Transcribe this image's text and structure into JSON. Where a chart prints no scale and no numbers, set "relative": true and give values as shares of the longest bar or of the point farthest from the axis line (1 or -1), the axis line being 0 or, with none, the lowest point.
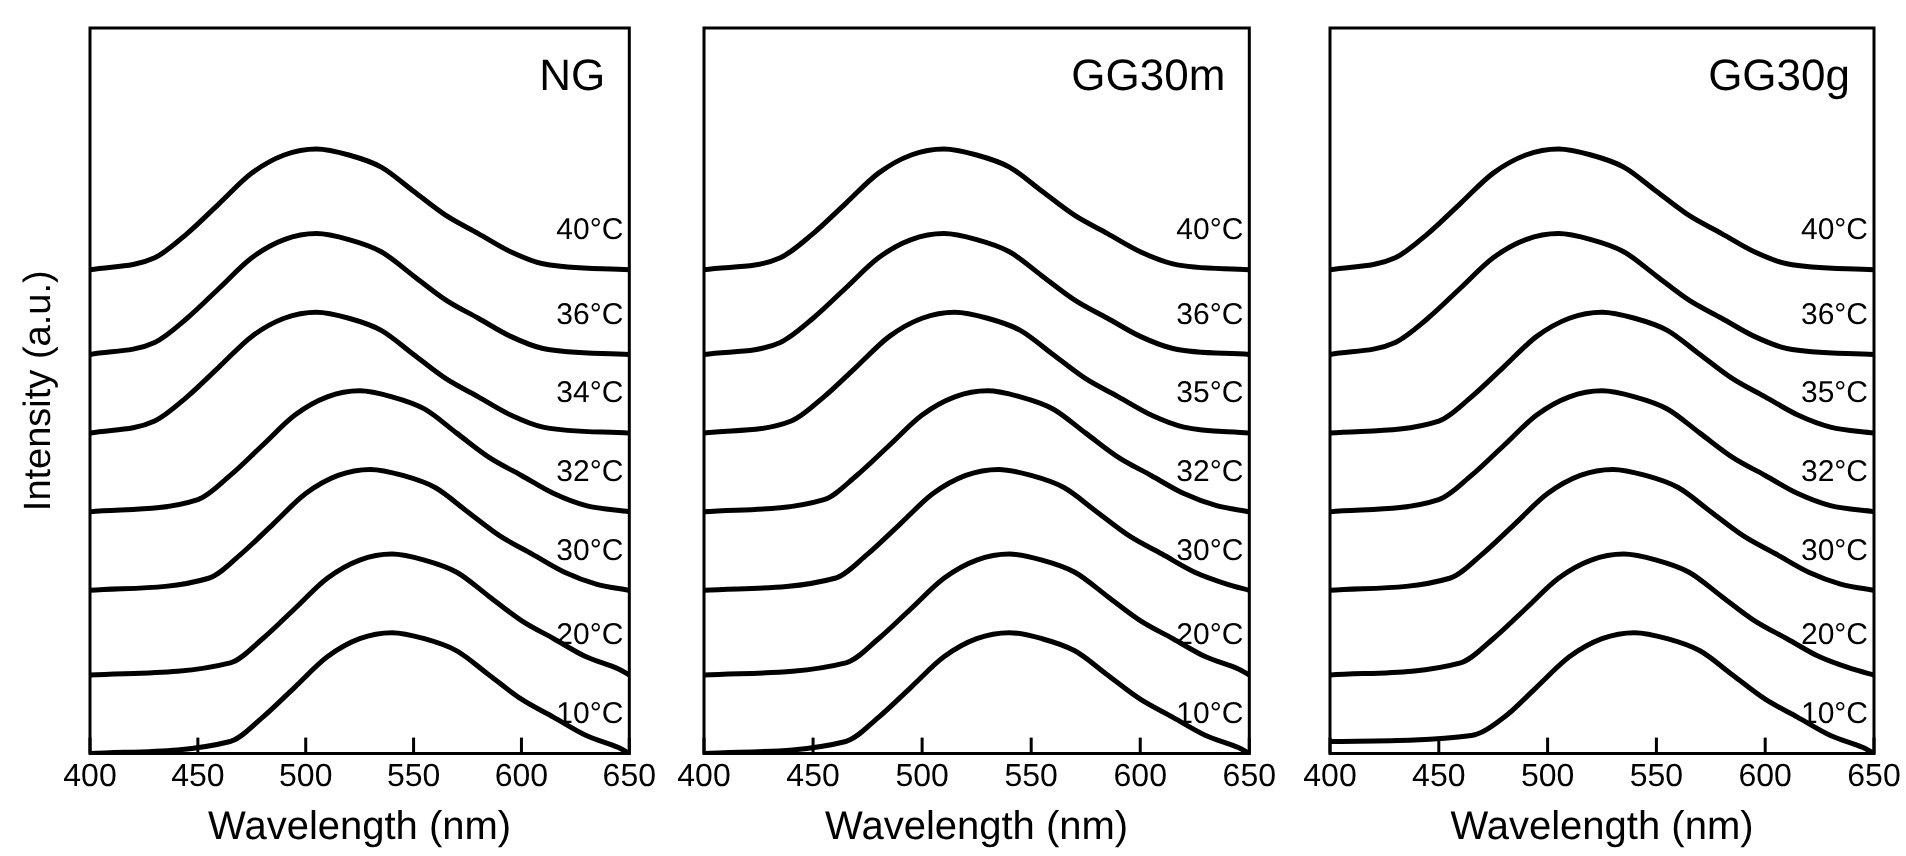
{
  "chart_data": [
    {
      "type": "line",
      "title": "NG",
      "xlabel": "Wavelength (nm)",
      "ylabel": "Intensity (a.u.)",
      "relative": true,
      "xlim": [
        400,
        650
      ],
      "xticks": [
        400,
        450,
        500,
        550,
        600,
        650
      ],
      "marker": "none",
      "series": [
        {
          "name": "10°C",
          "color": "#000000",
          "x": [
            400,
            465,
            480,
            495,
            510,
            525,
            540,
            555,
            570,
            585,
            600,
            615,
            630,
            645,
            650
          ],
          "values": [
            0,
            0.02,
            0.06,
            0.11,
            0.16,
            0.19,
            0.2,
            0.19,
            0.17,
            0.13,
            0.09,
            0.06,
            0.03,
            0.01,
            0
          ]
        },
        {
          "name": "20°C",
          "color": "#000000",
          "x": [
            400,
            465,
            480,
            495,
            510,
            525,
            540,
            555,
            570,
            585,
            600,
            615,
            630,
            645,
            650
          ],
          "values": [
            0.13,
            0.15,
            0.19,
            0.24,
            0.29,
            0.32,
            0.33,
            0.32,
            0.3,
            0.26,
            0.22,
            0.19,
            0.16,
            0.14,
            0.13
          ]
        },
        {
          "name": "30°C",
          "color": "#000000",
          "x": [
            400,
            455,
            470,
            485,
            500,
            515,
            530,
            545,
            560,
            575,
            590,
            605,
            620,
            635,
            650
          ],
          "values": [
            0.27,
            0.29,
            0.33,
            0.38,
            0.43,
            0.46,
            0.47,
            0.46,
            0.44,
            0.4,
            0.36,
            0.33,
            0.3,
            0.28,
            0.27
          ]
        },
        {
          "name": "32°C",
          "color": "#000000",
          "x": [
            400,
            450,
            465,
            480,
            495,
            510,
            525,
            540,
            555,
            570,
            585,
            600,
            615,
            630,
            650
          ],
          "values": [
            0.4,
            0.42,
            0.46,
            0.51,
            0.56,
            0.59,
            0.6,
            0.59,
            0.57,
            0.53,
            0.49,
            0.46,
            0.43,
            0.41,
            0.4
          ]
        },
        {
          "name": "34°C",
          "color": "#000000",
          "x": [
            400,
            430,
            445,
            460,
            475,
            490,
            505,
            520,
            535,
            550,
            565,
            580,
            595,
            610,
            650
          ],
          "values": [
            0.53,
            0.55,
            0.59,
            0.64,
            0.69,
            0.72,
            0.73,
            0.72,
            0.7,
            0.66,
            0.62,
            0.59,
            0.56,
            0.54,
            0.53
          ]
        },
        {
          "name": "36°C",
          "color": "#000000",
          "x": [
            400,
            430,
            445,
            460,
            475,
            490,
            505,
            520,
            535,
            550,
            565,
            580,
            595,
            610,
            650
          ],
          "values": [
            0.66,
            0.68,
            0.72,
            0.77,
            0.82,
            0.85,
            0.86,
            0.85,
            0.83,
            0.79,
            0.75,
            0.72,
            0.69,
            0.67,
            0.66
          ]
        },
        {
          "name": "40°C",
          "color": "#000000",
          "x": [
            400,
            430,
            445,
            460,
            475,
            490,
            505,
            520,
            535,
            550,
            565,
            580,
            595,
            610,
            650
          ],
          "values": [
            0.8,
            0.82,
            0.86,
            0.91,
            0.96,
            0.99,
            1,
            0.99,
            0.97,
            0.93,
            0.89,
            0.86,
            0.83,
            0.81,
            0.8
          ]
        }
      ]
    },
    {
      "type": "line",
      "title": "GG30m",
      "xlabel": "Wavelength (nm)",
      "relative": true,
      "xlim": [
        400,
        650
      ],
      "xticks": [
        400,
        450,
        500,
        550,
        600,
        650
      ],
      "marker": "none",
      "series": [
        {
          "name": "10°C",
          "color": "#000000",
          "x": [
            400,
            465,
            480,
            495,
            510,
            525,
            540,
            555,
            570,
            585,
            600,
            615,
            630,
            645,
            650
          ],
          "values": [
            0,
            0.02,
            0.06,
            0.11,
            0.16,
            0.19,
            0.2,
            0.19,
            0.17,
            0.13,
            0.09,
            0.06,
            0.03,
            0.01,
            0
          ]
        },
        {
          "name": "20°C",
          "color": "#000000",
          "x": [
            400,
            465,
            480,
            495,
            510,
            525,
            540,
            555,
            570,
            585,
            600,
            615,
            630,
            645,
            650
          ],
          "values": [
            0.13,
            0.15,
            0.19,
            0.24,
            0.29,
            0.32,
            0.33,
            0.32,
            0.3,
            0.26,
            0.22,
            0.19,
            0.16,
            0.14,
            0.13
          ]
        },
        {
          "name": "30°C",
          "color": "#000000",
          "x": [
            400,
            460,
            475,
            490,
            505,
            520,
            535,
            550,
            565,
            580,
            595,
            610,
            625,
            640,
            650
          ],
          "values": [
            0.27,
            0.29,
            0.33,
            0.38,
            0.43,
            0.46,
            0.47,
            0.46,
            0.44,
            0.4,
            0.36,
            0.33,
            0.3,
            0.28,
            0.27
          ]
        },
        {
          "name": "32°C",
          "color": "#000000",
          "x": [
            400,
            455,
            470,
            485,
            500,
            515,
            530,
            545,
            560,
            575,
            590,
            605,
            620,
            635,
            650
          ],
          "values": [
            0.4,
            0.42,
            0.46,
            0.51,
            0.56,
            0.59,
            0.6,
            0.59,
            0.57,
            0.53,
            0.49,
            0.46,
            0.43,
            0.41,
            0.4
          ]
        },
        {
          "name": "35°C",
          "color": "#000000",
          "x": [
            400,
            440,
            455,
            470,
            485,
            500,
            515,
            530,
            545,
            560,
            575,
            590,
            605,
            620,
            650
          ],
          "values": [
            0.53,
            0.55,
            0.59,
            0.64,
            0.69,
            0.72,
            0.73,
            0.72,
            0.7,
            0.66,
            0.62,
            0.59,
            0.56,
            0.54,
            0.53
          ]
        },
        {
          "name": "36°C",
          "color": "#000000",
          "x": [
            400,
            435,
            450,
            465,
            480,
            495,
            510,
            525,
            540,
            555,
            570,
            585,
            600,
            615,
            650
          ],
          "values": [
            0.66,
            0.68,
            0.72,
            0.77,
            0.82,
            0.85,
            0.86,
            0.85,
            0.83,
            0.79,
            0.75,
            0.72,
            0.69,
            0.67,
            0.66
          ]
        },
        {
          "name": "40°C",
          "color": "#000000",
          "x": [
            400,
            435,
            450,
            465,
            480,
            495,
            510,
            525,
            540,
            555,
            570,
            585,
            600,
            615,
            650
          ],
          "values": [
            0.8,
            0.82,
            0.86,
            0.91,
            0.96,
            0.99,
            1,
            0.99,
            0.97,
            0.93,
            0.89,
            0.86,
            0.83,
            0.81,
            0.8
          ]
        }
      ]
    },
    {
      "type": "line",
      "title": "GG30g",
      "xlabel": "Wavelength (nm)",
      "relative": true,
      "xlim": [
        400,
        650
      ],
      "xticks": [
        400,
        450,
        500,
        550,
        600,
        650
      ],
      "marker": "none",
      "series": [
        {
          "name": "10°C",
          "color": "#000000",
          "x": [
            400,
            465,
            480,
            495,
            510,
            525,
            540,
            555,
            570,
            585,
            600,
            615,
            630,
            645,
            650
          ],
          "values": [
            0.02,
            0.03,
            0.06,
            0.11,
            0.16,
            0.19,
            0.2,
            0.19,
            0.17,
            0.13,
            0.09,
            0.06,
            0.03,
            0.01,
            0
          ]
        },
        {
          "name": "20°C",
          "color": "#000000",
          "x": [
            400,
            460,
            475,
            490,
            505,
            520,
            535,
            550,
            565,
            580,
            595,
            610,
            625,
            640,
            650
          ],
          "values": [
            0.13,
            0.15,
            0.19,
            0.24,
            0.29,
            0.32,
            0.33,
            0.32,
            0.3,
            0.26,
            0.22,
            0.19,
            0.16,
            0.14,
            0.13
          ]
        },
        {
          "name": "30°C",
          "color": "#000000",
          "x": [
            400,
            455,
            470,
            485,
            500,
            515,
            530,
            545,
            560,
            575,
            590,
            605,
            620,
            635,
            650
          ],
          "values": [
            0.27,
            0.29,
            0.33,
            0.38,
            0.43,
            0.46,
            0.47,
            0.46,
            0.44,
            0.4,
            0.36,
            0.33,
            0.3,
            0.28,
            0.27
          ]
        },
        {
          "name": "32°C",
          "color": "#000000",
          "x": [
            400,
            450,
            465,
            480,
            495,
            510,
            525,
            540,
            555,
            570,
            585,
            600,
            615,
            630,
            650
          ],
          "values": [
            0.4,
            0.42,
            0.46,
            0.51,
            0.56,
            0.59,
            0.6,
            0.59,
            0.57,
            0.53,
            0.49,
            0.46,
            0.43,
            0.41,
            0.4
          ]
        },
        {
          "name": "35°C",
          "color": "#000000",
          "x": [
            400,
            450,
            465,
            480,
            495,
            510,
            525,
            540,
            555,
            570,
            585,
            600,
            615,
            630,
            650
          ],
          "values": [
            0.53,
            0.55,
            0.59,
            0.64,
            0.69,
            0.72,
            0.73,
            0.72,
            0.7,
            0.66,
            0.62,
            0.59,
            0.56,
            0.54,
            0.53
          ]
        },
        {
          "name": "36°C",
          "color": "#000000",
          "x": [
            400,
            430,
            445,
            460,
            475,
            490,
            505,
            520,
            535,
            550,
            565,
            580,
            595,
            610,
            650
          ],
          "values": [
            0.66,
            0.68,
            0.72,
            0.77,
            0.82,
            0.85,
            0.86,
            0.85,
            0.83,
            0.79,
            0.75,
            0.72,
            0.69,
            0.67,
            0.66
          ]
        },
        {
          "name": "40°C",
          "color": "#000000",
          "x": [
            400,
            430,
            445,
            460,
            475,
            490,
            505,
            520,
            535,
            550,
            565,
            580,
            595,
            610,
            650
          ],
          "values": [
            0.8,
            0.82,
            0.86,
            0.91,
            0.96,
            0.99,
            1,
            0.99,
            0.97,
            0.93,
            0.89,
            0.86,
            0.83,
            0.81,
            0.8
          ]
        }
      ]
    }
  ]
}
